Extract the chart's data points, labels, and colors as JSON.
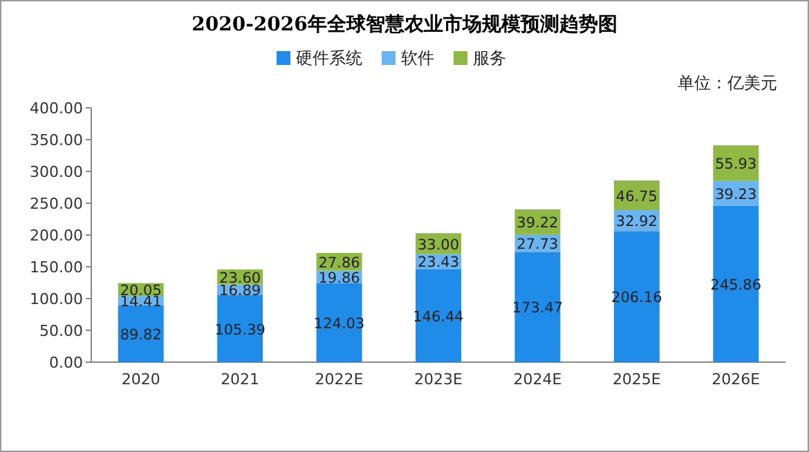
{
  "chart_data": {
    "type": "bar",
    "stacked": true,
    "title": "2020-2026年全球智慧农业市场规模预测趋势图",
    "categories": [
      "2020",
      "2021",
      "2022E",
      "2023E",
      "2024E",
      "2025E",
      "2026E"
    ],
    "series": [
      {
        "name": "硬件系统",
        "color": "#1e8ce8",
        "values": [
          89.82,
          105.39,
          124.03,
          146.44,
          173.47,
          206.16,
          245.86
        ],
        "value_labels": [
          "89.82",
          "105.39",
          "124.03",
          "146.44",
          "173.47",
          "206.16",
          "245.86"
        ]
      },
      {
        "name": "软件",
        "color": "#6ab4f2",
        "values": [
          14.41,
          16.89,
          19.86,
          23.43,
          27.73,
          32.92,
          39.23
        ],
        "value_labels": [
          "14.41",
          "16.89",
          "19.86",
          "23.43",
          "27.73",
          "32.92",
          "39.23"
        ]
      },
      {
        "name": "服务",
        "color": "#8fb844",
        "values": [
          20.05,
          23.6,
          27.86,
          33,
          39.22,
          46.75,
          55.93
        ],
        "value_labels": [
          "20.05",
          "23.60",
          "27.86",
          "33.00",
          "39.22",
          "46.75",
          "55.93"
        ]
      }
    ],
    "ylim": [
      0,
      400
    ],
    "yticks": [
      {
        "value": 0,
        "label": "0.00"
      },
      {
        "value": 50,
        "label": "50.00"
      },
      {
        "value": 100,
        "label": "100.00"
      },
      {
        "value": 150,
        "label": "150.00"
      },
      {
        "value": 200,
        "label": "200.00"
      },
      {
        "value": 250,
        "label": "250.00"
      },
      {
        "value": 300,
        "label": "300.00"
      },
      {
        "value": 350,
        "label": "350.00"
      },
      {
        "value": 400,
        "label": "400.00"
      }
    ],
    "legend": "top",
    "annotations": [
      "单位：亿美元"
    ]
  }
}
